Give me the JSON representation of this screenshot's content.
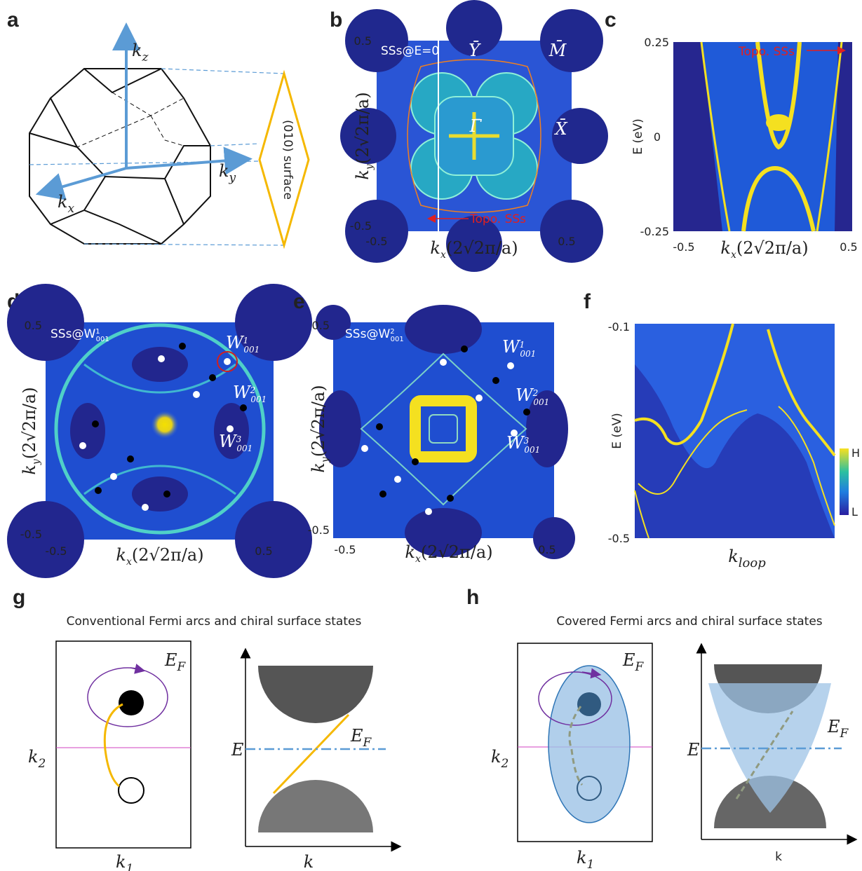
{
  "panels": {
    "a": {
      "label": "a",
      "kz": {
        "base": "k",
        "sub": "z"
      },
      "ky": {
        "base": "k",
        "sub": "y"
      },
      "kx": {
        "base": "k",
        "sub": "x"
      },
      "surface": "(010) surface"
    },
    "b": {
      "label": "b",
      "inset": "SSs@E=0",
      "points": [
        "Ȳ",
        "M̄",
        "X̄",
        "Γ̄"
      ],
      "annotation": "Topo. SSs",
      "yticks": [
        "0.5",
        "-0.5"
      ],
      "xticks": [
        "-0.5",
        "0.5"
      ],
      "ylabel": {
        "base": "k",
        "sub": "y",
        "rest": "(2√2π/a)"
      },
      "xlabel": {
        "base": "k",
        "sub": "x",
        "rest": "(2√2π/a)"
      }
    },
    "c": {
      "label": "c",
      "yticks": [
        "0.25",
        "0",
        "-0.25"
      ],
      "ylabel": "E (eV)",
      "annotation": "Topo. SSs",
      "xticks": [
        "-0.5",
        "0.5"
      ],
      "xlabel": {
        "base": "k",
        "sub": "x",
        "rest": "(2√2π/a)"
      }
    },
    "d": {
      "label": "d",
      "inset": {
        "text": "SSs@W",
        "sup": "1",
        "sub": "001"
      },
      "weyl": [
        {
          "base": "W",
          "sup": "1",
          "sub": "001"
        },
        {
          "base": "W",
          "sup": "2",
          "sub": "001"
        },
        {
          "base": "W",
          "sup": "3",
          "sub": "001"
        }
      ],
      "yticks": [
        "0.5",
        "-0.5"
      ],
      "xticks": [
        "-0.5",
        "0.5"
      ],
      "ylabel": {
        "base": "k",
        "sub": "y",
        "rest": "(2√2π/a)"
      },
      "xlabel": {
        "base": "k",
        "sub": "x",
        "rest": "(2√2π/a)"
      }
    },
    "e": {
      "label": "e",
      "inset": {
        "text": "SSs@W",
        "sup": "2",
        "sub": "001"
      },
      "weyl": [
        {
          "base": "W",
          "sup": "1",
          "sub": "001"
        },
        {
          "base": "W",
          "sup": "2",
          "sub": "001"
        },
        {
          "base": "W",
          "sup": "3",
          "sub": "001"
        }
      ],
      "yticks": [
        "0.5",
        "-0.5"
      ],
      "xticks": [
        "-0.5",
        "0.5"
      ],
      "ylabel": {
        "base": "k",
        "sub": "y",
        "rest": "(2√2π/a)"
      },
      "xlabel": {
        "base": "k",
        "sub": "x",
        "rest": "(2√2π/a)"
      }
    },
    "f": {
      "label": "f",
      "yticks": [
        "-0.1",
        "-0.5"
      ],
      "ylabel": "E (eV)",
      "xlabel": {
        "base": "k",
        "sub": "loop"
      },
      "colorbar": [
        "H",
        "L"
      ]
    },
    "g": {
      "label": "g",
      "title": "Conventional Fermi arcs and chiral surface states",
      "ef1": {
        "base": "E",
        "sub": "F"
      },
      "k2": {
        "base": "k",
        "sub": "2"
      },
      "k1": {
        "base": "k",
        "sub": "1"
      },
      "e": "E",
      "ef2": {
        "base": "E",
        "sub": "F"
      },
      "k": "k"
    },
    "h": {
      "label": "h",
      "title": "Covered Fermi arcs and chiral surface states",
      "ef1": {
        "base": "E",
        "sub": "F"
      },
      "k2": {
        "base": "k",
        "sub": "2"
      },
      "k1": {
        "base": "k",
        "sub": "1"
      },
      "e": "E",
      "ef2": {
        "base": "E",
        "sub": "F"
      },
      "k": "k"
    }
  }
}
